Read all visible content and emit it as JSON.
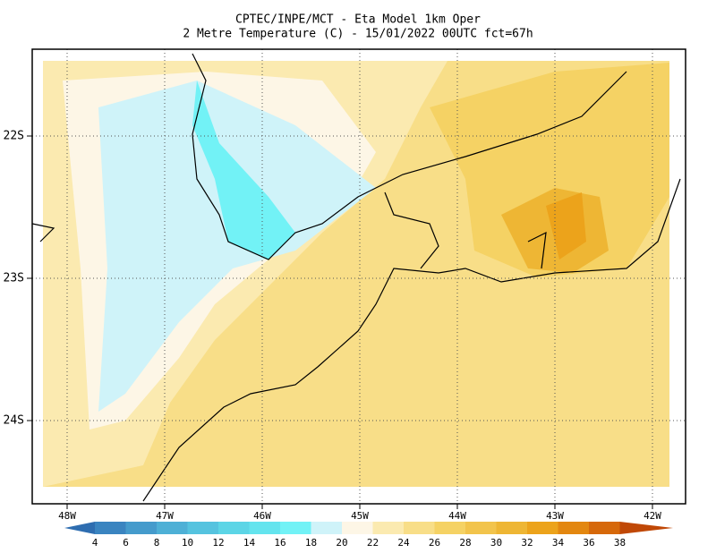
{
  "header": {
    "title": "CPTEC/INPE/MCT -  Eta Model 1km Oper",
    "subtitle": "2 Metre Temperature (C) - 15/01/2022 00UTC fct=67h"
  },
  "map": {
    "x_labels": [
      "48W",
      "47W",
      "46W",
      "45W",
      "44W",
      "43W",
      "42W"
    ],
    "y_labels": [
      "22S",
      "23S",
      "24S"
    ]
  },
  "colorbar": {
    "labels": [
      "4",
      "6",
      "8",
      "10",
      "12",
      "14",
      "16",
      "18",
      "20",
      "22",
      "24",
      "26",
      "28",
      "30",
      "32",
      "34",
      "36",
      "38"
    ],
    "colors": [
      "#2e6db0",
      "#3a84c0",
      "#459bcc",
      "#4eb0d6",
      "#55c3df",
      "#5cd5e6",
      "#64e4ee",
      "#72f2f6",
      "#cff3f9",
      "#fdf6e6",
      "#fbeab0",
      "#f8de88",
      "#f5d264",
      "#f2c44c",
      "#eeb634",
      "#eca31b",
      "#e38710",
      "#d6680a",
      "#c04806"
    ]
  }
}
